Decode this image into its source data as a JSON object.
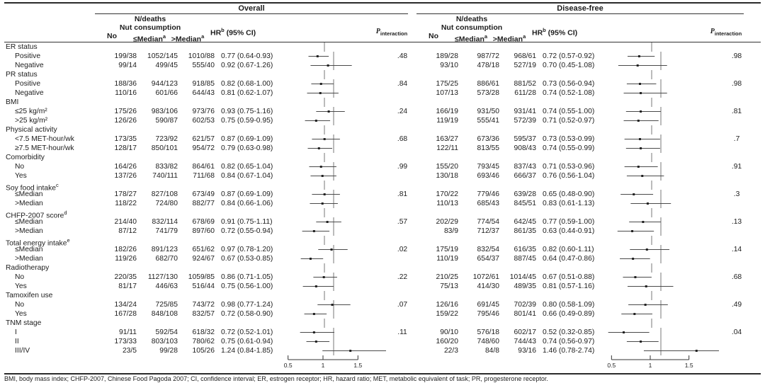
{
  "panels": [
    {
      "title": "Overall"
    },
    {
      "title": "Disease-free"
    }
  ],
  "header": {
    "n_deaths": "N/deaths",
    "nut_consumption": "Nut consumption",
    "no": "No",
    "le_median": {
      "text": "≤Median",
      "sup": "a"
    },
    "gt_median": {
      "text": ">Median",
      "sup": "a"
    },
    "hr": {
      "pre": "HR",
      "sup": "b",
      "post": " (95% CI)"
    },
    "p": {
      "pre": "P",
      "sub": "interaction"
    }
  },
  "axis": {
    "min": 0.25,
    "max": 1.75,
    "ref_line": 1,
    "tick_values": [
      0.5,
      1,
      1.5
    ],
    "tick_labels": [
      "0.5",
      "1",
      "1.5"
    ]
  },
  "footnote": "BMI, body mass index; CHFP-2007, Chinese Food Pagoda 2007; CI, confidence interval; ER, estrogen receptor; HR, hazard ratio; MET, metabolic equivalent of task; PR, progesterone receptor.",
  "colors": {
    "text": "#1c1c1c",
    "rule": "#2b2b2b",
    "ci_line": "#4a4a4a",
    "marker": "#222222",
    "ref_line": "#555555"
  },
  "chart_data": {
    "type": "scatter",
    "variant": "forest-plot",
    "xlabel": "HR (95% CI)",
    "x_ticks": [
      0.5,
      1,
      1.5
    ],
    "x_range": [
      0.25,
      1.75
    ],
    "reference_line": 1,
    "groups": [
      {
        "label": "ER status",
        "p_overall": ".48",
        "p_disease_free": ".98",
        "rows": [
          {
            "label": "Positive",
            "overall": {
              "no": "199/38",
              "le": "1052/145",
              "gt": "1010/88",
              "hr_ci": "0.77 (0.64-0.93)",
              "est": [
                0.77,
                0.64,
                0.93
              ]
            },
            "disease_free": {
              "no": "189/28",
              "le": "987/72",
              "gt": "968/61",
              "hr_ci": "0.72 (0.57-0.92)",
              "est": [
                0.72,
                0.57,
                0.92
              ]
            }
          },
          {
            "label": "Negative",
            "overall": {
              "no": "99/14",
              "le": "499/45",
              "gt": "555/40",
              "hr_ci": "0.92 (0.67-1.26)",
              "est": [
                0.92,
                0.67,
                1.26
              ]
            },
            "disease_free": {
              "no": "93/10",
              "le": "478/18",
              "gt": "527/19",
              "hr_ci": "0.70 (0.45-1.08)",
              "est": [
                0.7,
                0.45,
                1.08
              ]
            }
          }
        ]
      },
      {
        "label": "PR status",
        "p_overall": ".84",
        "p_disease_free": ".98",
        "rows": [
          {
            "label": "Positive",
            "overall": {
              "no": "188/36",
              "le": "944/123",
              "gt": "918/85",
              "hr_ci": "0.82 (0.68-1.00)",
              "est": [
                0.82,
                0.68,
                1.0
              ]
            },
            "disease_free": {
              "no": "175/25",
              "le": "886/61",
              "gt": "881/52",
              "hr_ci": "0.73 (0.56-0.94)",
              "est": [
                0.73,
                0.56,
                0.94
              ]
            }
          },
          {
            "label": "Negative",
            "overall": {
              "no": "110/16",
              "le": "601/66",
              "gt": "644/43",
              "hr_ci": "0.81 (0.62-1.07)",
              "est": [
                0.81,
                0.62,
                1.07
              ]
            },
            "disease_free": {
              "no": "107/13",
              "le": "573/28",
              "gt": "611/28",
              "hr_ci": "0.74 (0.52-1.08)",
              "est": [
                0.74,
                0.52,
                1.08
              ]
            }
          }
        ]
      },
      {
        "label": "BMI",
        "p_overall": ".24",
        "p_disease_free": ".81",
        "rows": [
          {
            "label": "≤25 kg/m²",
            "overall": {
              "no": "175/26",
              "le": "983/106",
              "gt": "973/76",
              "hr_ci": "0.93 (0.75-1.16)",
              "est": [
                0.93,
                0.75,
                1.16
              ]
            },
            "disease_free": {
              "no": "166/19",
              "le": "931/50",
              "gt": "931/41",
              "hr_ci": "0.74 (0.55-1.00)",
              "est": [
                0.74,
                0.55,
                1.0
              ]
            }
          },
          {
            "label": ">25 kg/m²",
            "overall": {
              "no": "126/26",
              "le": "590/87",
              "gt": "602/53",
              "hr_ci": "0.75 (0.59-0.95)",
              "est": [
                0.75,
                0.59,
                0.95
              ]
            },
            "disease_free": {
              "no": "119/19",
              "le": "555/41",
              "gt": "572/39",
              "hr_ci": "0.71 (0.52-0.97)",
              "est": [
                0.71,
                0.52,
                0.97
              ]
            }
          }
        ]
      },
      {
        "label": "Physical activity",
        "p_overall": ".68",
        "p_disease_free": ".7",
        "rows": [
          {
            "label": "<7.5 MET-hour/wk",
            "overall": {
              "no": "173/35",
              "le": "723/92",
              "gt": "621/57",
              "hr_ci": "0.87 (0.69-1.09)",
              "est": [
                0.87,
                0.69,
                1.09
              ]
            },
            "disease_free": {
              "no": "163/27",
              "le": "673/36",
              "gt": "595/37",
              "hr_ci": "0.73 (0.53-0.99)",
              "est": [
                0.73,
                0.53,
                0.99
              ]
            }
          },
          {
            "label": "≥7.5 MET-hour/wk",
            "overall": {
              "no": "128/17",
              "le": "850/101",
              "gt": "954/72",
              "hr_ci": "0.79 (0.63-0.98)",
              "est": [
                0.79,
                0.63,
                0.98
              ]
            },
            "disease_free": {
              "no": "122/11",
              "le": "813/55",
              "gt": "908/43",
              "hr_ci": "0.74 (0.55-0.99)",
              "est": [
                0.74,
                0.55,
                0.99
              ]
            }
          }
        ]
      },
      {
        "label": "Comorbidity",
        "p_overall": ".99",
        "p_disease_free": ".91",
        "rows": [
          {
            "label": "No",
            "overall": {
              "no": "164/26",
              "le": "833/82",
              "gt": "864/61",
              "hr_ci": "0.82 (0.65-1.04)",
              "est": [
                0.82,
                0.65,
                1.04
              ]
            },
            "disease_free": {
              "no": "155/20",
              "le": "793/45",
              "gt": "837/43",
              "hr_ci": "0.71 (0.53-0.96)",
              "est": [
                0.71,
                0.53,
                0.96
              ]
            }
          },
          {
            "label": "Yes",
            "overall": {
              "no": "137/26",
              "le": "740/111",
              "gt": "711/68",
              "hr_ci": "0.84 (0.67-1.04)",
              "est": [
                0.84,
                0.67,
                1.04
              ]
            },
            "disease_free": {
              "no": "130/18",
              "le": "693/46",
              "gt": "666/37",
              "hr_ci": "0.76 (0.56-1.04)",
              "est": [
                0.76,
                0.56,
                1.04
              ]
            }
          }
        ]
      },
      {
        "label": "Soy food intake",
        "sup": "c",
        "p_overall": ".81",
        "p_disease_free": ".3",
        "rows": [
          {
            "label": "≤Median",
            "overall": {
              "no": "178/27",
              "le": "827/108",
              "gt": "673/49",
              "hr_ci": "0.87 (0.69-1.09)",
              "est": [
                0.87,
                0.69,
                1.09
              ]
            },
            "disease_free": {
              "no": "170/22",
              "le": "779/46",
              "gt": "639/28",
              "hr_ci": "0.65 (0.48-0.90)",
              "est": [
                0.65,
                0.48,
                0.9
              ]
            }
          },
          {
            "label": ">Median",
            "overall": {
              "no": "118/22",
              "le": "724/80",
              "gt": "882/77",
              "hr_ci": "0.84 (0.66-1.06)",
              "est": [
                0.84,
                0.66,
                1.06
              ]
            },
            "disease_free": {
              "no": "110/13",
              "le": "685/43",
              "gt": "845/51",
              "hr_ci": "0.83 (0.61-1.13)",
              "est": [
                0.83,
                0.61,
                1.13
              ]
            }
          }
        ]
      },
      {
        "label": "CHFP-2007 score",
        "sup": "d",
        "p_overall": ".57",
        "p_disease_free": ".13",
        "rows": [
          {
            "label": "≤Median",
            "overall": {
              "no": "214/40",
              "le": "832/114",
              "gt": "678/69",
              "hr_ci": "0.91 (0.75-1.11)",
              "est": [
                0.91,
                0.75,
                1.11
              ]
            },
            "disease_free": {
              "no": "202/29",
              "le": "774/54",
              "gt": "642/45",
              "hr_ci": "0.77 (0.59-1.00)",
              "est": [
                0.77,
                0.59,
                1.0
              ]
            }
          },
          {
            "label": ">Median",
            "overall": {
              "no": "87/12",
              "le": "741/79",
              "gt": "897/60",
              "hr_ci": "0.72 (0.55-0.94)",
              "est": [
                0.72,
                0.55,
                0.94
              ]
            },
            "disease_free": {
              "no": "83/9",
              "le": "712/37",
              "gt": "861/35",
              "hr_ci": "0.63 (0.44-0.91)",
              "est": [
                0.63,
                0.44,
                0.91
              ]
            }
          }
        ]
      },
      {
        "label": "Total energy intake",
        "sup": "e",
        "p_overall": ".02",
        "p_disease_free": ".14",
        "rows": [
          {
            "label": "≤Median",
            "overall": {
              "no": "182/26",
              "le": "891/123",
              "gt": "651/62",
              "hr_ci": "0.97 (0.78-1.20)",
              "est": [
                0.97,
                0.78,
                1.2
              ]
            },
            "disease_free": {
              "no": "175/19",
              "le": "832/54",
              "gt": "616/35",
              "hr_ci": "0.82 (0.60-1.11)",
              "est": [
                0.82,
                0.6,
                1.11
              ]
            }
          },
          {
            "label": ">Median",
            "overall": {
              "no": "119/26",
              "le": "682/70",
              "gt": "924/67",
              "hr_ci": "0.67 (0.53-0.85)",
              "est": [
                0.67,
                0.53,
                0.85
              ]
            },
            "disease_free": {
              "no": "110/19",
              "le": "654/37",
              "gt": "887/45",
              "hr_ci": "0.64 (0.47-0.86)",
              "est": [
                0.64,
                0.47,
                0.86
              ]
            }
          }
        ]
      },
      {
        "label": "Radiotherapy",
        "p_overall": ".22",
        "p_disease_free": ".68",
        "rows": [
          {
            "label": "No",
            "overall": {
              "no": "220/35",
              "le": "1127/130",
              "gt": "1059/85",
              "hr_ci": "0.86 (0.71-1.05)",
              "est": [
                0.86,
                0.71,
                1.05
              ]
            },
            "disease_free": {
              "no": "210/25",
              "le": "1072/61",
              "gt": "1014/45",
              "hr_ci": "0.67 (0.51-0.88)",
              "est": [
                0.67,
                0.51,
                0.88
              ]
            }
          },
          {
            "label": "Yes",
            "overall": {
              "no": "81/17",
              "le": "446/63",
              "gt": "516/44",
              "hr_ci": "0.75 (0.56-1.00)",
              "est": [
                0.75,
                0.56,
                1.0
              ]
            },
            "disease_free": {
              "no": "75/13",
              "le": "414/30",
              "gt": "489/35",
              "hr_ci": "0.81 (0.57-1.16)",
              "est": [
                0.81,
                0.57,
                1.16
              ]
            }
          }
        ]
      },
      {
        "label": "Tamoxifen use",
        "p_overall": ".07",
        "p_disease_free": ".49",
        "rows": [
          {
            "label": "No",
            "overall": {
              "no": "134/24",
              "le": "725/85",
              "gt": "743/72",
              "hr_ci": "0.98 (0.77-1.24)",
              "est": [
                0.98,
                0.77,
                1.24
              ]
            },
            "disease_free": {
              "no": "126/16",
              "le": "691/45",
              "gt": "702/39",
              "hr_ci": "0.80 (0.58-1.09)",
              "est": [
                0.8,
                0.58,
                1.09
              ]
            }
          },
          {
            "label": "Yes",
            "overall": {
              "no": "167/28",
              "le": "848/108",
              "gt": "832/57",
              "hr_ci": "0.72 (0.58-0.90)",
              "est": [
                0.72,
                0.58,
                0.9
              ]
            },
            "disease_free": {
              "no": "159/22",
              "le": "795/46",
              "gt": "801/41",
              "hr_ci": "0.66 (0.49-0.89)",
              "est": [
                0.66,
                0.49,
                0.89
              ]
            }
          }
        ]
      },
      {
        "label": "TNM stage",
        "p_overall": ".11",
        "p_disease_free": ".04",
        "rows": [
          {
            "label": "I",
            "overall": {
              "no": "91/11",
              "le": "592/54",
              "gt": "618/32",
              "hr_ci": "0.72 (0.52-1.01)",
              "est": [
                0.72,
                0.52,
                1.01
              ]
            },
            "disease_free": {
              "no": "90/10",
              "le": "576/18",
              "gt": "602/17",
              "hr_ci": "0.52 (0.32-0.85)",
              "est": [
                0.52,
                0.32,
                0.85
              ]
            }
          },
          {
            "label": "II",
            "overall": {
              "no": "173/33",
              "le": "803/103",
              "gt": "780/62",
              "hr_ci": "0.75 (0.61-0.94)",
              "est": [
                0.75,
                0.61,
                0.94
              ]
            },
            "disease_free": {
              "no": "160/20",
              "le": "748/60",
              "gt": "744/43",
              "hr_ci": "0.74 (0.56-0.97)",
              "est": [
                0.74,
                0.56,
                0.97
              ]
            }
          },
          {
            "label": "III/IV",
            "overall": {
              "no": "23/5",
              "le": "99/28",
              "gt": "105/26",
              "hr_ci": "1.24 (0.84-1.85)",
              "est": [
                1.24,
                0.84,
                1.85
              ]
            },
            "disease_free": {
              "no": "22/3",
              "le": "84/8",
              "gt": "93/16",
              "hr_ci": "1.46 (0.78-2.74)",
              "est": [
                1.46,
                0.78,
                2.74
              ]
            }
          }
        ]
      }
    ]
  }
}
